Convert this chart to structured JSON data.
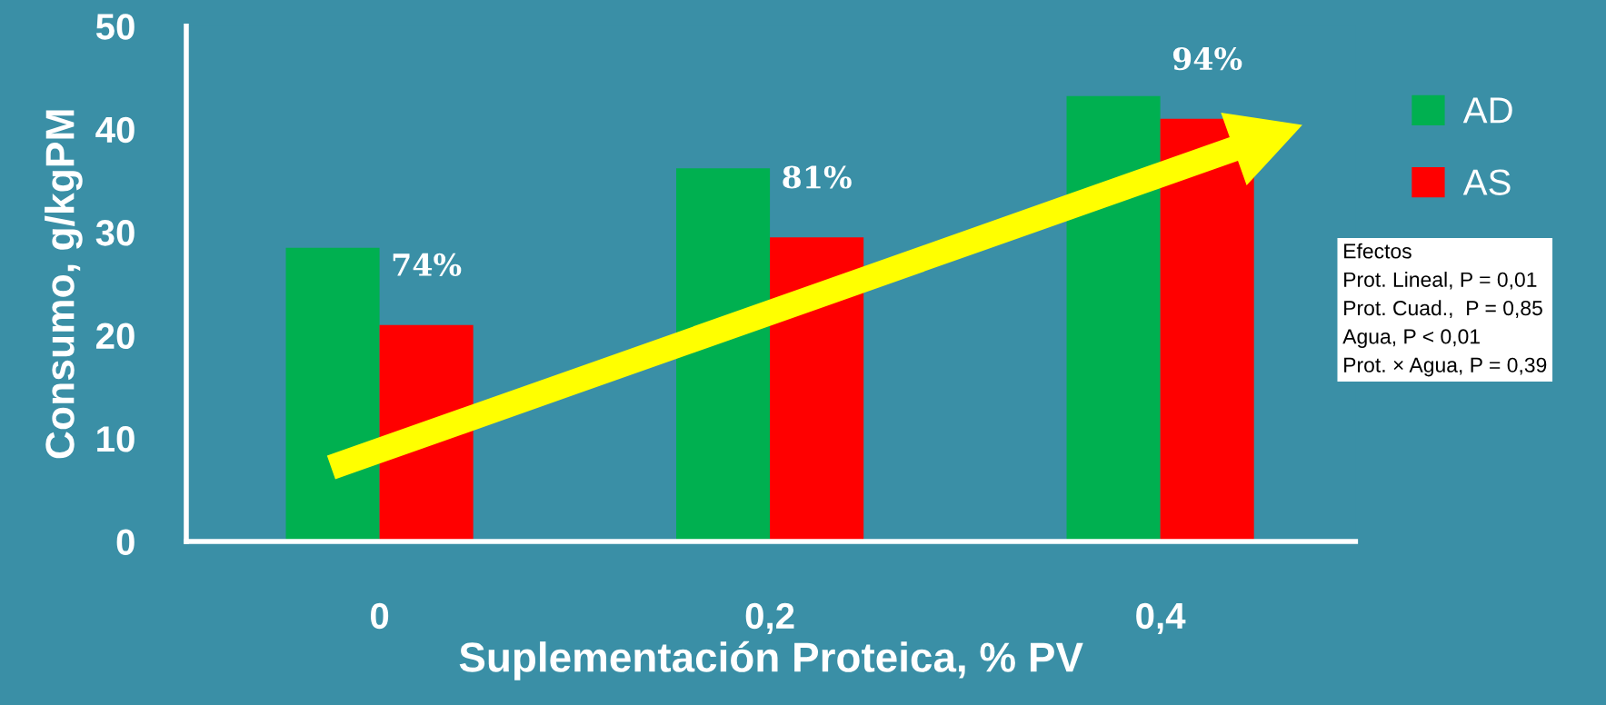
{
  "chart_data": {
    "type": "bar",
    "xlabel": "Suplementación Proteica, % PV",
    "ylabel": "Consumo, g/kgPM",
    "categories": [
      "0",
      "0,2",
      "0,4"
    ],
    "series": [
      {
        "name": "AD",
        "color": "#00b050",
        "values": [
          28.5,
          36.2,
          43.2
        ]
      },
      {
        "name": "AS",
        "color": "#ff0000",
        "values": [
          21.0,
          29.5,
          41.0
        ]
      }
    ],
    "ylim": [
      0,
      50
    ],
    "yticks": [
      0,
      10,
      20,
      30,
      40,
      50
    ],
    "grid": false,
    "legend": "right",
    "annotations": [
      "74%",
      "81%",
      "94%",
      "Efectos\nProt. Lineal, P = 0,01\nProt. Cuad.,  P = 0,85\nAgua, P < 0,01\nProt. × Agua, P = 0,39"
    ]
  }
}
